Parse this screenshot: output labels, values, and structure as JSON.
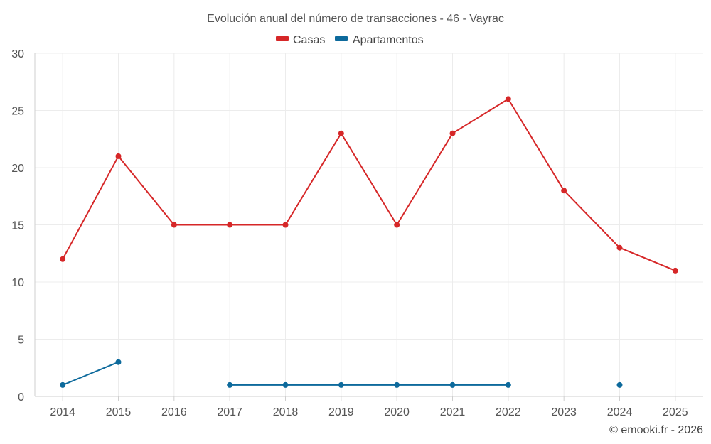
{
  "chart_data": {
    "type": "line",
    "title": "Evolución anual del número de transacciones - 46 - Vayrac",
    "categories": [
      "2014",
      "2015",
      "2016",
      "2017",
      "2018",
      "2019",
      "2020",
      "2021",
      "2022",
      "2023",
      "2024",
      "2025"
    ],
    "ylim": [
      0,
      30
    ],
    "yticks": [
      "0",
      "5",
      "10",
      "15",
      "20",
      "25",
      "30"
    ],
    "grid": true,
    "legend_position": "top-center",
    "series": [
      {
        "name": "Casas",
        "color": "#d62728",
        "values": [
          12,
          21,
          15,
          15,
          15,
          23,
          15,
          23,
          26,
          18,
          13,
          11
        ]
      },
      {
        "name": "Apartamentos",
        "color": "#0d6a9c",
        "values": [
          1,
          3,
          null,
          1,
          1,
          1,
          1,
          1,
          1,
          null,
          1,
          null
        ]
      }
    ]
  },
  "credit": "© emooki.fr - 2026"
}
